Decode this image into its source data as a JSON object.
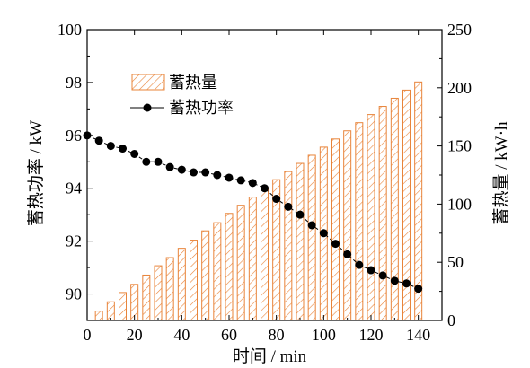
{
  "chart_data": {
    "type": "bar+line",
    "xlabel": "时间 / min",
    "ylabel_left": "蓄热功率 / kW",
    "ylabel_right": "蓄热量 / kW·h",
    "xlim": [
      0,
      150
    ],
    "xticks": [
      0,
      20,
      40,
      60,
      80,
      100,
      120,
      140
    ],
    "ylim_left": [
      89,
      100
    ],
    "yticks_left": [
      90,
      92,
      94,
      96,
      98,
      100
    ],
    "ylim_right": [
      0,
      250
    ],
    "yticks_right": [
      0,
      50,
      100,
      150,
      200,
      250
    ],
    "legend_position": "top-left",
    "grid": false,
    "colors": {
      "bar": "#e8843a",
      "line": "#000000"
    },
    "series": [
      {
        "name": "蓄热量",
        "type": "bar",
        "axis": "right",
        "x": [
          5,
          10,
          15,
          20,
          25,
          30,
          35,
          40,
          45,
          50,
          55,
          60,
          65,
          70,
          75,
          80,
          85,
          90,
          95,
          100,
          105,
          110,
          115,
          120,
          125,
          130,
          135,
          140
        ],
        "values": [
          8,
          16,
          24,
          31,
          39,
          47,
          54,
          62,
          69,
          77,
          84,
          92,
          99,
          106,
          114,
          121,
          128,
          135,
          142,
          149,
          156,
          163,
          170,
          177,
          184,
          191,
          198,
          205
        ]
      },
      {
        "name": "蓄热功率",
        "type": "line",
        "axis": "left",
        "x": [
          0,
          5,
          10,
          15,
          20,
          25,
          30,
          35,
          40,
          45,
          50,
          55,
          60,
          65,
          70,
          75,
          80,
          85,
          90,
          95,
          100,
          105,
          110,
          115,
          120,
          125,
          130,
          135,
          140
        ],
        "values": [
          96.0,
          95.8,
          95.6,
          95.5,
          95.3,
          95.0,
          95.0,
          94.8,
          94.7,
          94.6,
          94.6,
          94.5,
          94.4,
          94.3,
          94.2,
          94.0,
          93.6,
          93.3,
          93.0,
          92.6,
          92.3,
          91.9,
          91.5,
          91.1,
          90.9,
          90.7,
          90.5,
          90.4,
          90.2
        ]
      }
    ]
  }
}
